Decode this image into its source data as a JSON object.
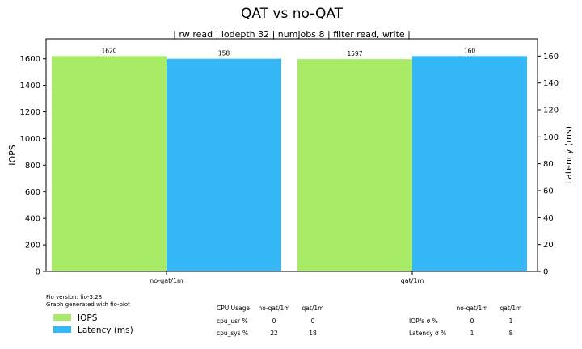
{
  "chart_data": {
    "type": "bar",
    "title": "QAT vs no-QAT",
    "subtitle": "| rw read | iodepth 32 | numjobs 8 | filter read, write |",
    "categories": [
      "no-qat/1m",
      "qat/1m"
    ],
    "ylabel": "IOPS",
    "y2label": "Latency (ms)",
    "ylim": [
      0,
      1750
    ],
    "y2lim": [
      0,
      172.8
    ],
    "yticks": [
      0,
      200,
      400,
      600,
      800,
      1000,
      1200,
      1400,
      1600
    ],
    "y2ticks": [
      0,
      20,
      40,
      60,
      80,
      100,
      120,
      140,
      160
    ],
    "grid": false,
    "legend_position": "bottom-left",
    "series": [
      {
        "name": "IOPS",
        "axis": "left",
        "color": "#a8eb64",
        "values": [
          1620,
          1597
        ],
        "labels": [
          "1620",
          "1597"
        ]
      },
      {
        "name": "Latency (ms)",
        "axis": "right",
        "color": "#35b8f8",
        "values": [
          158,
          160
        ],
        "labels": [
          "158",
          "160"
        ]
      }
    ]
  },
  "footer": {
    "version": "Fio version: fio-3.28",
    "generated": "Graph generated with fio-plot"
  },
  "cpu_table": {
    "headers": [
      "CPU Usage",
      "no-qat/1m",
      "qat/1m"
    ],
    "rows": [
      [
        "cpu_usr %",
        "0",
        "0"
      ],
      [
        "cpu_sys %",
        "22",
        "18"
      ]
    ]
  },
  "stddev_table": {
    "headers": [
      "",
      "no-qat/1m",
      "qat/1m"
    ],
    "rows": [
      [
        "IOP/s σ %",
        "0",
        "1"
      ],
      [
        "Latency σ %",
        "1",
        "8"
      ]
    ]
  }
}
